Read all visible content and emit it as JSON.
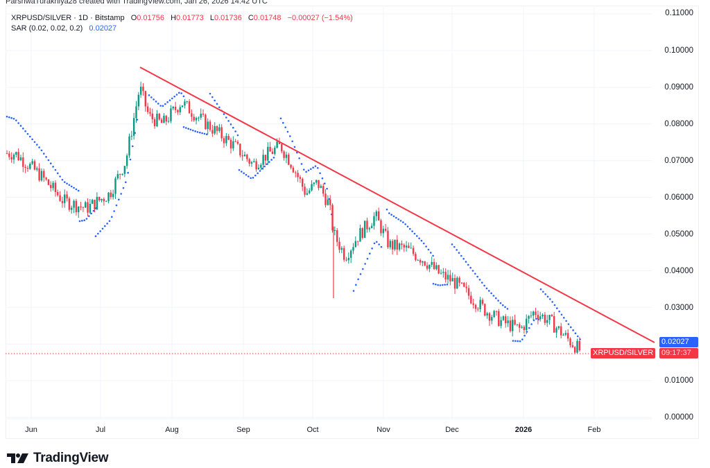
{
  "header": {
    "credit": "ParshwaTurakhiya28 created with TradingView.com, Jan 26, 2026 14:42 UTC"
  },
  "legend": {
    "symbol": "XRPUSD/SILVER · 1D · Bitstamp",
    "open_label": "O",
    "open": "0.01756",
    "high_label": "H",
    "high": "0.01773",
    "low_label": "L",
    "low": "0.01736",
    "close_label": "C",
    "close": "0.01748",
    "change": "−0.00027 (−1.54%)",
    "indicator": "SAR (0.02, 0.02, 0.2)",
    "indicator_value": "0.02027"
  },
  "y_axis": {
    "ticks": [
      "0.11000",
      "0.10000",
      "0.09000",
      "0.08000",
      "0.07000",
      "0.06000",
      "0.05000",
      "0.04000",
      "0.03000",
      "0.01000",
      "0.00000"
    ]
  },
  "x_axis": {
    "ticks": [
      "Jun",
      "Jul",
      "Aug",
      "Sep",
      "Oct",
      "Nov",
      "Dec",
      "2026",
      "Feb"
    ]
  },
  "price_badges": {
    "sar_value": "0.02027",
    "symbol": "XRPUSD/SILVER",
    "countdown": "09:17:37"
  },
  "branding": {
    "logo_text": "TradingView"
  },
  "colors": {
    "up": "#089981",
    "down": "#f23645",
    "sar": "#2962ff",
    "trendline": "#f23645",
    "grid": "#f0f3fa"
  },
  "chart_data": {
    "type": "candlestick",
    "title": "XRPUSD/SILVER · 1D · Bitstamp",
    "xlabel": "",
    "ylabel": "",
    "ylim": [
      0.0,
      0.11
    ],
    "x_ticks": [
      "Jun",
      "Jul",
      "Aug",
      "Sep",
      "Oct",
      "Nov",
      "Dec",
      "2026",
      "Feb"
    ],
    "y_ticks": [
      0.0,
      0.01,
      0.02,
      0.03,
      0.04,
      0.05,
      0.06,
      0.07,
      0.08,
      0.09,
      0.1,
      0.11
    ],
    "grid": true,
    "last_bar": {
      "open": 0.01756,
      "high": 0.01773,
      "low": 0.01736,
      "close": 0.01748,
      "change": -0.00027,
      "change_pct": -1.54
    },
    "indicators": [
      {
        "name": "Parabolic SAR",
        "params": [
          0.02,
          0.02,
          0.2
        ],
        "last_value": 0.02027
      }
    ],
    "approx_close_series": {
      "dates": [
        "2025-05-25",
        "2025-06-05",
        "2025-06-15",
        "2025-06-25",
        "2025-07-05",
        "2025-07-12",
        "2025-07-18",
        "2025-07-22",
        "2025-07-28",
        "2025-08-05",
        "2025-08-12",
        "2025-08-20",
        "2025-08-28",
        "2025-09-05",
        "2025-09-12",
        "2025-09-17",
        "2025-09-22",
        "2025-09-28",
        "2025-10-03",
        "2025-10-08",
        "2025-10-10",
        "2025-10-15",
        "2025-10-20",
        "2025-10-28",
        "2025-11-03",
        "2025-11-10",
        "2025-11-18",
        "2025-11-25",
        "2025-12-01",
        "2025-12-08",
        "2025-12-15",
        "2025-12-22",
        "2025-12-30",
        "2026-01-05",
        "2026-01-12",
        "2026-01-20",
        "2026-01-26"
      ],
      "values": [
        0.072,
        0.066,
        0.059,
        0.057,
        0.061,
        0.07,
        0.09,
        0.082,
        0.08,
        0.086,
        0.082,
        0.078,
        0.074,
        0.069,
        0.072,
        0.074,
        0.069,
        0.061,
        0.064,
        0.058,
        0.05,
        0.044,
        0.049,
        0.055,
        0.047,
        0.046,
        0.043,
        0.039,
        0.037,
        0.033,
        0.029,
        0.026,
        0.024,
        0.029,
        0.026,
        0.021,
        0.0175
      ]
    },
    "trendline": {
      "from": {
        "date": "2025-07-18",
        "price": 0.0953
      },
      "to": {
        "date": "2026-02-25",
        "price": 0.0202
      }
    },
    "annotations": [
      "Descending red trendline from July 2025 high",
      "Current price line dotted at 0.01748"
    ]
  }
}
